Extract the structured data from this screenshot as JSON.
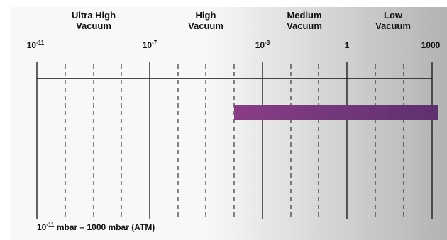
{
  "colors": {
    "line": "#111111",
    "bar_left": "#8a3d86",
    "bar_right": "#5e3070",
    "panel_light": "#f8f8f8",
    "panel_dark": "#b3b3b3"
  },
  "regions": [
    {
      "id": "ultra-high-vacuum",
      "label": "Ultra High\nVacuum"
    },
    {
      "id": "high-vacuum",
      "label": "High\nVacuum"
    },
    {
      "id": "medium-vacuum",
      "label": "Medium\nVacuum"
    },
    {
      "id": "low-vacuum",
      "label": "Low\nVacuum"
    }
  ],
  "ticks": [
    {
      "id": "1e-11",
      "base": "10",
      "exp": "-11",
      "value": 1e-11
    },
    {
      "id": "1e-7",
      "base": "10",
      "exp": "-7",
      "value": 1e-07
    },
    {
      "id": "1e-3",
      "base": "10",
      "exp": "-3",
      "value": 0.001
    },
    {
      "id": "1",
      "base": "1",
      "exp": "",
      "value": 1
    },
    {
      "id": "1000",
      "base": "1000",
      "exp": "",
      "value": 1000
    }
  ],
  "range_bar": {
    "from": 0.0001,
    "to": 1000
  },
  "footnote": {
    "base": "10",
    "exp": "-11",
    "rest": " mbar – 1000 mbar (ATM)"
  }
}
